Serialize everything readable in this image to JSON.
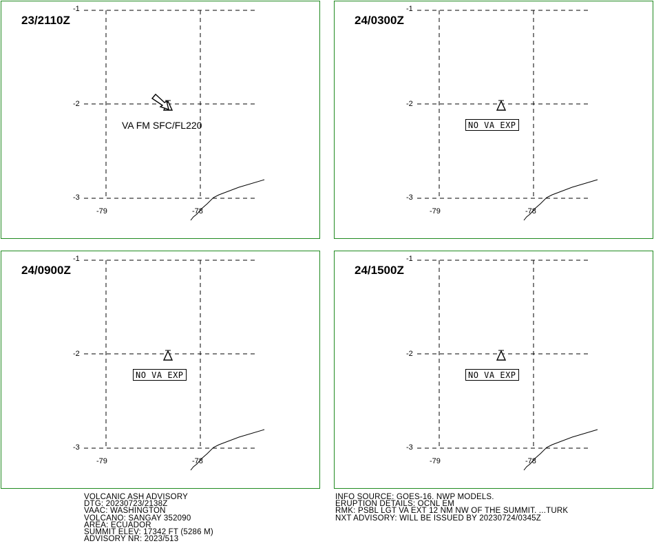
{
  "panels": [
    {
      "time": "23/2110Z",
      "lat_labels": [
        "-1",
        "-2",
        "-3"
      ],
      "lon_labels": [
        "-79",
        "-78"
      ],
      "ash_label": "VA FM SFC/FL220",
      "no_va_text": ""
    },
    {
      "time": "24/0300Z",
      "lat_labels": [
        "-1",
        "-2",
        "-3"
      ],
      "lon_labels": [
        "-79",
        "-78"
      ],
      "ash_label": "",
      "no_va_text": "NO VA EXP"
    },
    {
      "time": "24/0900Z",
      "lat_labels": [
        "-1",
        "-2",
        "-3"
      ],
      "lon_labels": [
        "-79",
        "-78"
      ],
      "ash_label": "",
      "no_va_text": "NO VA EXP"
    },
    {
      "time": "24/1500Z",
      "lat_labels": [
        "-1",
        "-2",
        "-3"
      ],
      "lon_labels": [
        "-79",
        "-78"
      ],
      "ash_label": "",
      "no_va_text": "NO VA EXP"
    }
  ],
  "advisory_left": [
    "VOLCANIC ASH ADVISORY",
    "DTG: 20230723/2138Z",
    "VAAC: WASHINGTON",
    "VOLCANO: SANGAY 352090",
    "AREA: ECUADOR",
    "SUMMIT ELEV: 17342 FT (5286 M)",
    "ADVISORY NR: 2023/513"
  ],
  "advisory_right": [
    "INFO SOURCE: GOES-16. NWP MODELS.",
    "ERUPTION DETAILS: OCNL EM",
    "RMK: PSBL LGT VA EXT 12 NM NW OF THE SUMMIT. ...TURK",
    "NXT ADVISORY: WILL BE ISSUED BY 20230724/0345Z"
  ],
  "colors": {
    "panel_border": "#1f8a1f",
    "grid": "#000000",
    "background": "#ffffff"
  },
  "icons": {
    "volcano": "volcano-triangle-icon",
    "ash_arrow": "ash-drift-arrow-icon"
  }
}
